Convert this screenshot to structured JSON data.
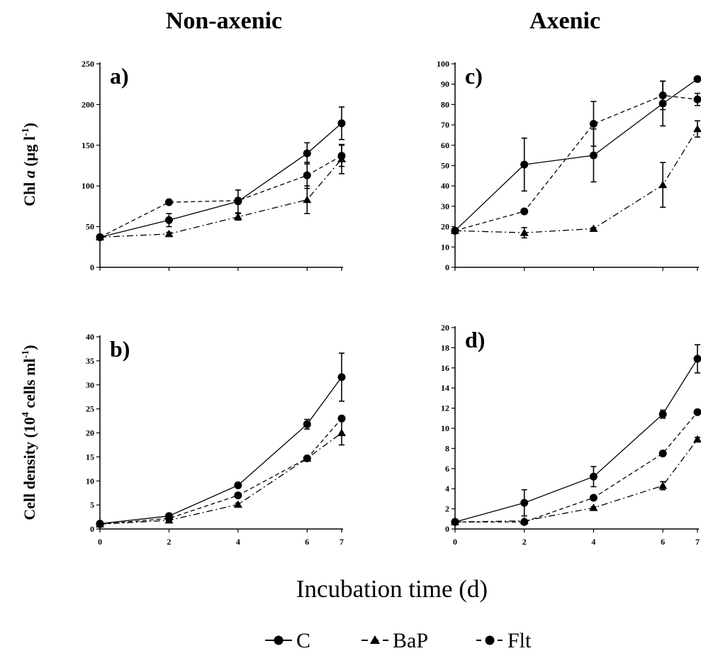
{
  "figure": {
    "col_titles": [
      "Non-axenic",
      "Axenic"
    ],
    "ylabel_top": {
      "pre": "Chl ",
      "italic": "a",
      "post": " (µg l",
      "sup": "-1",
      "end": ")"
    },
    "ylabel_bottom": {
      "pre": "Cell density (10",
      "sup1": "4",
      "mid": " cells ml",
      "sup2": "-1",
      "end": ")"
    },
    "xlabel": "Incubation time (d)",
    "legend": [
      {
        "name": "C",
        "label": "C",
        "marker": "circle",
        "dash": "solid"
      },
      {
        "name": "BaP",
        "label": "BaP",
        "marker": "triangle",
        "dash": "dashdot"
      },
      {
        "name": "Flt",
        "label": "Flt",
        "marker": "circle",
        "dash": "dashed"
      }
    ]
  },
  "chart_data": [
    {
      "type": "line",
      "panel": "a)",
      "column": "Non-axenic",
      "x": [
        0,
        2,
        4,
        6,
        7
      ],
      "xticks": [
        0,
        2,
        4,
        6,
        7
      ],
      "ylim": [
        0,
        250
      ],
      "yticks": [
        0,
        50,
        100,
        150,
        200,
        250
      ],
      "series": [
        {
          "name": "C",
          "values": [
            37,
            58,
            81,
            140,
            177
          ],
          "err": [
            3,
            8,
            14,
            13,
            20
          ],
          "marker": "circle",
          "dash": "solid"
        },
        {
          "name": "BaP",
          "values": [
            37,
            41,
            62,
            83,
            133
          ],
          "err": [
            3,
            2,
            4,
            17,
            18
          ],
          "marker": "triangle",
          "dash": "dashdot"
        },
        {
          "name": "Flt",
          "values": [
            37,
            80,
            82,
            113,
            137
          ],
          "err": [
            3,
            2,
            3,
            16,
            13
          ],
          "marker": "circle",
          "dash": "dashed"
        }
      ]
    },
    {
      "type": "line",
      "panel": "c)",
      "column": "Axenic",
      "x": [
        0,
        2,
        4,
        6,
        7
      ],
      "xticks": [
        0,
        2,
        4,
        6,
        7
      ],
      "ylim": [
        0,
        100
      ],
      "yticks": [
        0,
        10,
        20,
        30,
        40,
        50,
        60,
        70,
        80,
        90,
        100
      ],
      "series": [
        {
          "name": "C",
          "values": [
            18,
            50.5,
            55,
            80.5,
            92.5
          ],
          "err": [
            1,
            13,
            13,
            11,
            1
          ],
          "marker": "circle",
          "dash": "solid"
        },
        {
          "name": "BaP",
          "values": [
            18,
            17,
            19,
            40.5,
            68
          ],
          "err": [
            1,
            2.5,
            0.5,
            11,
            4
          ],
          "marker": "triangle",
          "dash": "dashdot"
        },
        {
          "name": "Flt",
          "values": [
            18,
            27.5,
            70.5,
            84.5,
            82.5
          ],
          "err": [
            1,
            0.5,
            11,
            7,
            3
          ],
          "marker": "circle",
          "dash": "dashed"
        }
      ]
    },
    {
      "type": "line",
      "panel": "b)",
      "column": "Non-axenic",
      "x": [
        0,
        2,
        4,
        6,
        7
      ],
      "xticks": [
        0,
        2,
        4,
        6,
        7
      ],
      "ylim": [
        0,
        40
      ],
      "yticks": [
        0,
        5,
        10,
        15,
        20,
        25,
        30,
        35,
        40
      ],
      "series": [
        {
          "name": "C",
          "values": [
            1.1,
            2.7,
            9.1,
            21.8,
            31.6
          ],
          "err": [
            0.2,
            0.3,
            0.3,
            1,
            5
          ],
          "marker": "circle",
          "dash": "solid"
        },
        {
          "name": "BaP",
          "values": [
            1,
            1.8,
            5.1,
            14.7,
            20
          ],
          "err": [
            0.2,
            0.3,
            0.3,
            0.3,
            2.5
          ],
          "marker": "triangle",
          "dash": "dashdot"
        },
        {
          "name": "Flt",
          "values": [
            1,
            2.2,
            7,
            14.7,
            23
          ],
          "err": [
            0.2,
            0.3,
            0.3,
            0.3,
            0.5
          ],
          "marker": "circle",
          "dash": "dashed"
        }
      ]
    },
    {
      "type": "line",
      "panel": "d)",
      "column": "Axenic",
      "x": [
        0,
        2,
        4,
        6,
        7
      ],
      "xticks": [
        0,
        2,
        4,
        6,
        7
      ],
      "ylim": [
        0,
        20
      ],
      "yticks": [
        0,
        2,
        4,
        6,
        8,
        10,
        12,
        14,
        16,
        18,
        20
      ],
      "series": [
        {
          "name": "C",
          "values": [
            0.7,
            2.6,
            5.2,
            11.4,
            16.9
          ],
          "err": [
            0.1,
            1.3,
            1,
            0.4,
            1.4
          ],
          "marker": "circle",
          "dash": "solid"
        },
        {
          "name": "BaP",
          "values": [
            0.7,
            0.8,
            2.1,
            4.3,
            8.9
          ],
          "err": [
            0.1,
            0.1,
            0.1,
            0.4,
            0.2
          ],
          "marker": "triangle",
          "dash": "dashdot"
        },
        {
          "name": "Flt",
          "values": [
            0.7,
            0.7,
            3.1,
            7.5,
            11.6
          ],
          "err": [
            0.1,
            0.1,
            0.1,
            0.1,
            0.1
          ],
          "marker": "circle",
          "dash": "dashed"
        }
      ]
    }
  ]
}
